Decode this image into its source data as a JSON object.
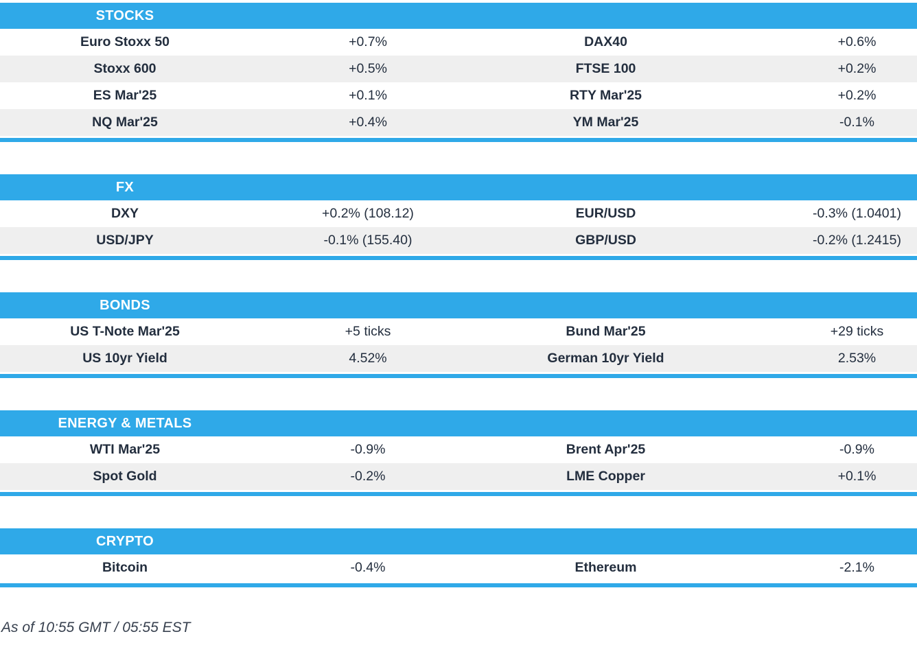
{
  "colors": {
    "accent_blue": "#2fa9e8",
    "row_alt_bg": "#efefef",
    "text": "#232e3e",
    "header_text": "#ffffff"
  },
  "sections": [
    {
      "title": "STOCKS",
      "rows": [
        [
          "Euro Stoxx 50",
          "+0.7%",
          "DAX40",
          "+0.6%"
        ],
        [
          "Stoxx 600",
          "+0.5%",
          "FTSE 100",
          "+0.2%"
        ],
        [
          "ES Mar'25",
          "+0.1%",
          "RTY Mar'25",
          "+0.2%"
        ],
        [
          "NQ Mar'25",
          "+0.4%",
          "YM Mar'25",
          "-0.1%"
        ]
      ]
    },
    {
      "title": "FX",
      "rows": [
        [
          "DXY",
          "+0.2% (108.12)",
          "EUR/USD",
          "-0.3% (1.0401)"
        ],
        [
          "USD/JPY",
          "-0.1% (155.40)",
          "GBP/USD",
          "-0.2% (1.2415)"
        ]
      ]
    },
    {
      "title": "BONDS",
      "rows": [
        [
          "US T-Note Mar'25",
          "+5 ticks",
          "Bund Mar'25",
          "+29 ticks"
        ],
        [
          "US 10yr Yield",
          "4.52%",
          "German 10yr Yield",
          "2.53%"
        ]
      ]
    },
    {
      "title": "ENERGY & METALS",
      "rows": [
        [
          "WTI Mar'25",
          "-0.9%",
          "Brent Apr'25",
          "-0.9%"
        ],
        [
          "Spot Gold",
          "-0.2%",
          "LME Copper",
          "+0.1%"
        ]
      ]
    },
    {
      "title": "CRYPTO",
      "rows": [
        [
          "Bitcoin",
          "-0.4%",
          "Ethereum",
          "-2.1%"
        ]
      ]
    }
  ],
  "footer": {
    "as_of": "As of 10:55 GMT / 05:55 EST"
  }
}
